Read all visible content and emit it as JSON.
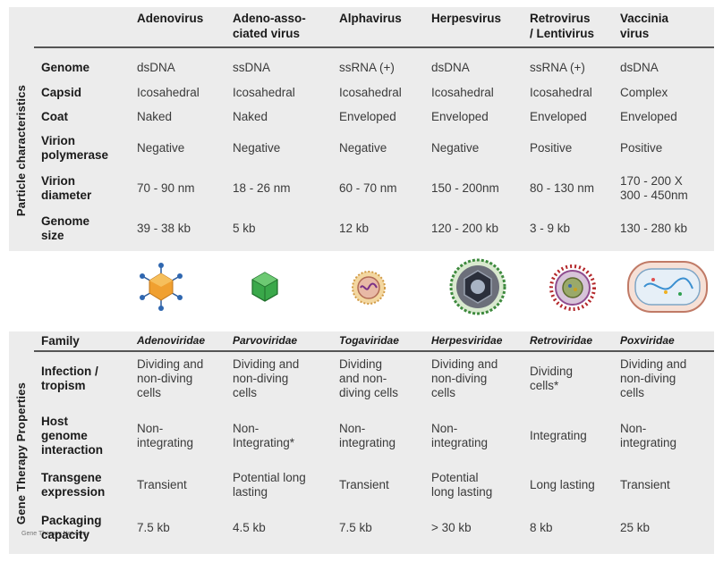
{
  "columns": [
    "Adenovirus",
    "Adeno-asso-\nciated virus",
    "Alphavirus",
    "Herpesvirus",
    "Retrovirus\n/ Lentivirus",
    "Vaccinia\nvirus"
  ],
  "sections": {
    "particle": "Particle characteristics",
    "gene": "Gene Therapy Properties"
  },
  "particle_rows": [
    {
      "label": "Genome",
      "values": [
        "dsDNA",
        "ssDNA",
        "ssRNA (+)",
        "dsDNA",
        "ssRNA (+)",
        "dsDNA"
      ]
    },
    {
      "label": "Capsid",
      "values": [
        "Icosahedral",
        "Icosahedral",
        "Icosahedral",
        "Icosahedral",
        "Icosahedral",
        "Complex"
      ]
    },
    {
      "label": "Coat",
      "values": [
        "Naked",
        "Naked",
        "Enveloped",
        "Enveloped",
        "Enveloped",
        "Enveloped"
      ]
    },
    {
      "label": "Virion\npolymerase",
      "values": [
        "Negative",
        "Negative",
        "Negative",
        "Negative",
        "Positive",
        "Positive"
      ]
    },
    {
      "label": "Virion\ndiameter",
      "values": [
        "70 - 90 nm",
        "18 - 26 nm",
        "60 - 70 nm",
        "150 - 200nm",
        "80 - 130 nm",
        "170 - 200 X\n300 - 450nm"
      ]
    },
    {
      "label": "Genome\nsize",
      "values": [
        "39 - 38 kb",
        "5 kb",
        "12 kb",
        "120 - 200 kb",
        "3 - 9 kb",
        "130 - 280 kb"
      ]
    }
  ],
  "credit": "Gene Therapy Net.com",
  "family": {
    "label": "Family",
    "values": [
      "Adenoviridae",
      "Parvoviridae",
      "Togaviridae",
      "Herpesviridae",
      "Retroviridae",
      "Poxviridae"
    ]
  },
  "gene_rows": [
    {
      "label": "Infection /\ntropism",
      "values": [
        "Dividing and\nnon-diving\ncells",
        "Dividing and\nnon-diving\ncells",
        "Dividing\nand non-\ndiving cells",
        "Dividing and\nnon-diving\ncells",
        "Dividing\ncells*",
        "Dividing and\nnon-diving\ncells"
      ]
    },
    {
      "label": "Host\ngenome\ninteraction",
      "values": [
        "Non-\nintegrating",
        "Non-\nIntegrating*",
        "Non-\nintegrating",
        "Non-\nintegrating",
        "Integrating",
        "Non-\nintegrating"
      ]
    },
    {
      "label": "Transgene\nexpression",
      "values": [
        "Transient",
        "Potential long\nlasting",
        "Transient",
        "Potential\nlong lasting",
        "Long lasting",
        "Transient"
      ]
    },
    {
      "label": "Packaging\ncapacity",
      "values": [
        "7.5 kb",
        "4.5 kb",
        "7.5 kb",
        "> 30 kb",
        "8 kb",
        "25 kb"
      ]
    }
  ],
  "virus_icons": [
    "adenovirus-icon",
    "aav-icon",
    "alphavirus-icon",
    "herpesvirus-icon",
    "retrovirus-icon",
    "vaccinia-icon"
  ]
}
